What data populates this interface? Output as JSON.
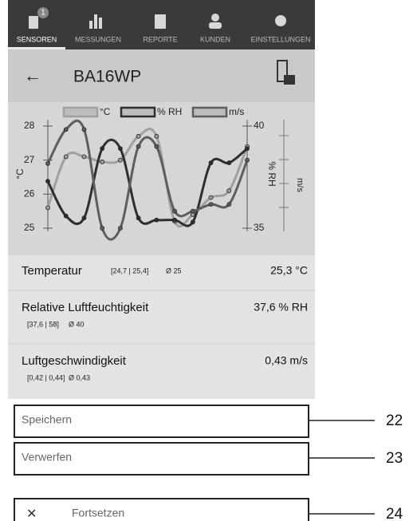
{
  "nav": {
    "tabs": [
      "SENSOREN",
      "MESSUNGEN",
      "REPORTE",
      "KUNDEN",
      "EINSTELLUNGEN"
    ],
    "badge": "1"
  },
  "header": {
    "back": "←",
    "title": "BA16WP"
  },
  "chart": {
    "type": "line",
    "legend": [
      "°C",
      "% RH",
      "m/s"
    ],
    "ylabel": "°C",
    "y2label": "% RH",
    "y3label": "m/s",
    "ylim": [
      25,
      28
    ],
    "yticks": [
      25,
      26,
      27,
      28
    ],
    "y2lim": [
      35,
      40
    ],
    "y2ticks": [
      35,
      40
    ],
    "series": [
      {
        "name": "°C",
        "color": "#a0a0a0",
        "values": [
          25.6,
          27.1,
          27.1,
          26.95,
          27.0,
          27.7,
          27.7,
          25.2,
          25.4,
          25.9,
          26.1,
          27.4
        ]
      },
      {
        "name": "% RH",
        "color": "#2e2e2e",
        "axis": "y2",
        "values": [
          37.3,
          35.6,
          35.5,
          38.9,
          38.9,
          35.5,
          35.4,
          35.4,
          35.3,
          38.2,
          38.2,
          38.9
        ]
      },
      {
        "name": "m/s",
        "color": "#5e5e5e",
        "values": [
          26.9,
          27.9,
          27.9,
          25.0,
          25.0,
          27.4,
          27.4,
          25.5,
          25.5,
          25.7,
          25.7,
          27.0
        ]
      }
    ]
  },
  "readings": [
    {
      "label": "Temperatur",
      "range": "[24,7 | 25,4]",
      "avg": "Ø 25",
      "value": "25,3 °C"
    },
    {
      "label": "Relative Luftfeuchtigkeit",
      "range": "[37,6 | 58]",
      "avg": "Ø 40",
      "value": "37,6 % RH"
    },
    {
      "label": "Luftgeschwindigkeit",
      "range": "[0,42 | 0,44]",
      "avg": "Ø 0,43",
      "value": "0,43 m/s"
    }
  ],
  "buttons": [
    {
      "label": "Speichern",
      "callout": "22"
    },
    {
      "label": "Verwerfen",
      "callout": "23"
    },
    {
      "icon": "✕",
      "label": "Fortsetzen",
      "callout": "24"
    }
  ]
}
